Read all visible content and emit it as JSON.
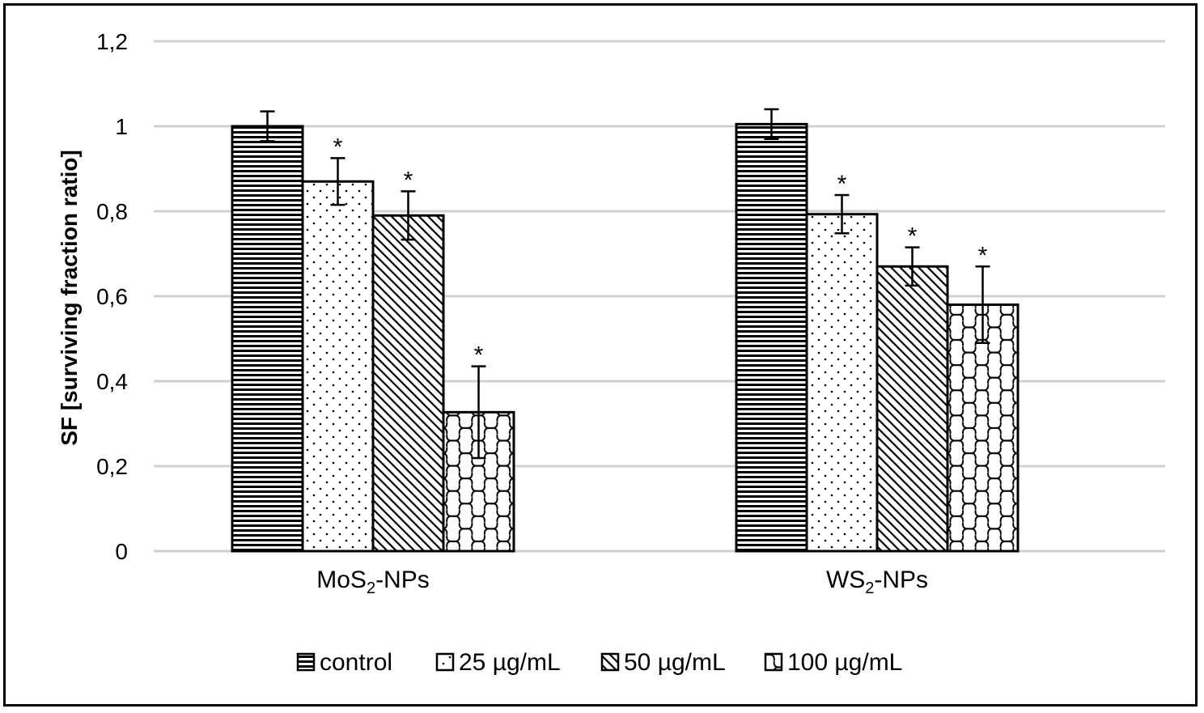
{
  "chart_data": {
    "type": "bar",
    "title": "",
    "xlabel": "",
    "ylabel": "SF [surviving fraction ratio]",
    "ylim": [
      0,
      1.2
    ],
    "yticks": [
      {
        "value": 0,
        "label": "0"
      },
      {
        "value": 0.2,
        "label": "0,2"
      },
      {
        "value": 0.4,
        "label": "0,4"
      },
      {
        "value": 0.6,
        "label": "0,6"
      },
      {
        "value": 0.8,
        "label": "0,8"
      },
      {
        "value": 1.0,
        "label": "1"
      },
      {
        "value": 1.2,
        "label": "1,2"
      }
    ],
    "grid": true,
    "legend_position": "bottom",
    "categories": [
      {
        "base": "MoS",
        "sub": "2",
        "suffix": "-NPs"
      },
      {
        "base": "WS",
        "sub": "2",
        "suffix": "-NPs"
      }
    ],
    "series": [
      {
        "name": "control",
        "pattern": "horizontal-lines",
        "values": [
          1.0,
          1.005
        ],
        "errors": [
          0.035,
          0.035
        ],
        "significant": [
          false,
          false
        ]
      },
      {
        "name": "25 µg/mL",
        "pattern": "dots",
        "values": [
          0.87,
          0.793
        ],
        "errors": [
          0.055,
          0.045
        ],
        "significant": [
          true,
          true
        ]
      },
      {
        "name": "50 µg/mL",
        "pattern": "diagonal-lines",
        "values": [
          0.79,
          0.67
        ],
        "errors": [
          0.057,
          0.045
        ],
        "significant": [
          true,
          true
        ]
      },
      {
        "name": "100 µg/mL",
        "pattern": "wave-grid",
        "values": [
          0.327,
          0.58
        ],
        "errors": [
          0.108,
          0.09
        ],
        "significant": [
          true,
          true
        ]
      }
    ],
    "significance_marker": "*"
  }
}
